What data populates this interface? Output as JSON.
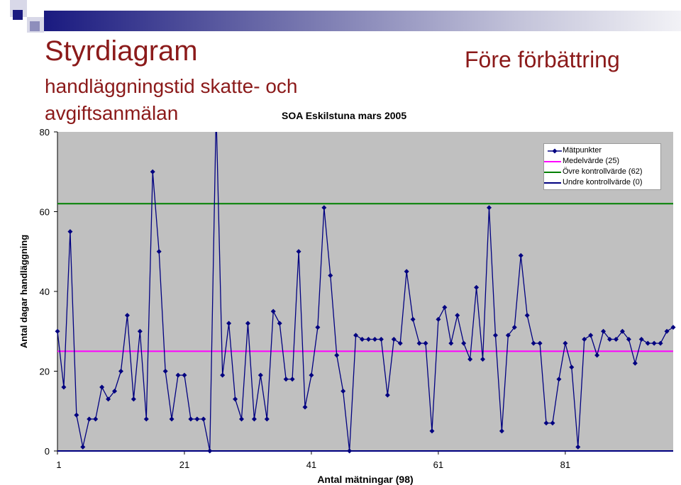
{
  "header": {
    "title": "Styrdiagram",
    "subtitle_line1": "handläggningstid skatte- och",
    "subtitle_line2": "avgiftsanmälan",
    "heading_right": "Före förbättring",
    "source": "SOA Eskilstuna mars 2005"
  },
  "colors": {
    "title": "#8B1A1A",
    "plot_bg": "#C0C0C0",
    "series": "#000080",
    "mean": "#FF00FF",
    "ucl": "#008000",
    "lcl": "#000080"
  },
  "chart_data": {
    "type": "line",
    "xlabel": "Antal mätningar (98)",
    "ylabel": "Antal dagar handläggning",
    "xlim": [
      1,
      98
    ],
    "ylim": [
      0,
      80
    ],
    "x_ticks": [
      1,
      21,
      41,
      61,
      81
    ],
    "y_ticks": [
      0,
      20,
      40,
      60,
      80
    ],
    "grid": false,
    "legend_position": "top-right",
    "series": [
      {
        "name": "Mätpunkter",
        "marker": "diamond",
        "values": [
          30,
          16,
          55,
          9,
          1,
          8,
          8,
          16,
          13,
          15,
          20,
          34,
          13,
          30,
          8,
          70,
          50,
          20,
          8,
          19,
          19,
          8,
          8,
          8,
          0,
          85,
          19,
          32,
          13,
          8,
          32,
          8,
          19,
          8,
          35,
          32,
          18,
          18,
          50,
          11,
          19,
          31,
          61,
          44,
          24,
          15,
          0,
          29,
          28,
          28,
          28,
          28,
          14,
          28,
          27,
          45,
          33,
          27,
          27,
          5,
          33,
          36,
          27,
          34,
          27,
          23,
          41,
          23,
          61,
          29,
          5,
          29,
          31,
          49,
          34,
          27,
          27,
          7,
          7,
          18,
          27,
          21,
          1,
          28,
          29,
          24,
          30,
          28,
          28,
          30,
          28,
          22,
          28,
          27,
          27,
          27,
          30,
          31
        ]
      },
      {
        "name": "Medelvärde (25)",
        "value": 25
      },
      {
        "name": "Övre kontrollvärde (62)",
        "value": 62
      },
      {
        "name": "Undre kontrollvärde (0)",
        "value": 0
      }
    ]
  }
}
